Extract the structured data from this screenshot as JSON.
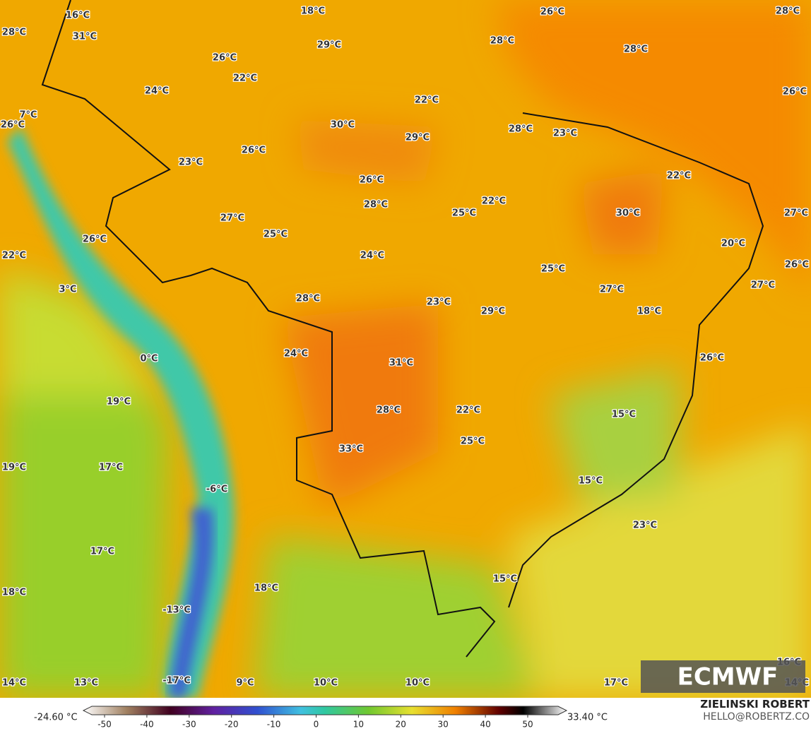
{
  "map": {
    "labels": [
      "16°C",
      "31°C",
      "28°C",
      "18°C",
      "26°C",
      "28°C",
      "29°C",
      "28°C",
      "28°C",
      "26°C",
      "22°C",
      "24°C",
      "22°C",
      "26°C",
      "7°C",
      "26°C",
      "30°C",
      "29°C",
      "28°C",
      "23°C",
      "26°C",
      "23°C",
      "22°C",
      "26°C",
      "28°C",
      "22°C",
      "30°C",
      "27°C",
      "27°C",
      "25°C",
      "25°C",
      "26°C",
      "20°C",
      "22°C",
      "24°C",
      "25°C",
      "26°C",
      "3°C",
      "27°C",
      "27°C",
      "28°C",
      "23°C",
      "29°C",
      "18°C",
      "24°C",
      "0°C",
      "26°C",
      "31°C",
      "19°C",
      "28°C",
      "22°C",
      "15°C",
      "25°C",
      "33°C",
      "19°C",
      "17°C",
      "15°C",
      "-6°C",
      "23°C",
      "17°C",
      "15°C",
      "18°C",
      "18°C",
      "-13°C",
      "16°C",
      "14°C",
      "13°C",
      "-17°C",
      "9°C",
      "10°C",
      "10°C",
      "17°C",
      "14°C"
    ]
  },
  "logo": "ECMWF",
  "colorbar": {
    "min_label": "-24.60 °C",
    "max_label": "33.40 °C",
    "ticks": [
      -50,
      -40,
      -30,
      -20,
      -10,
      0,
      10,
      20,
      30,
      40,
      50
    ]
  },
  "credit": {
    "author": "ZIELINSKI ROBERT",
    "email": "HELLO@ROBERTZ.CO"
  }
}
